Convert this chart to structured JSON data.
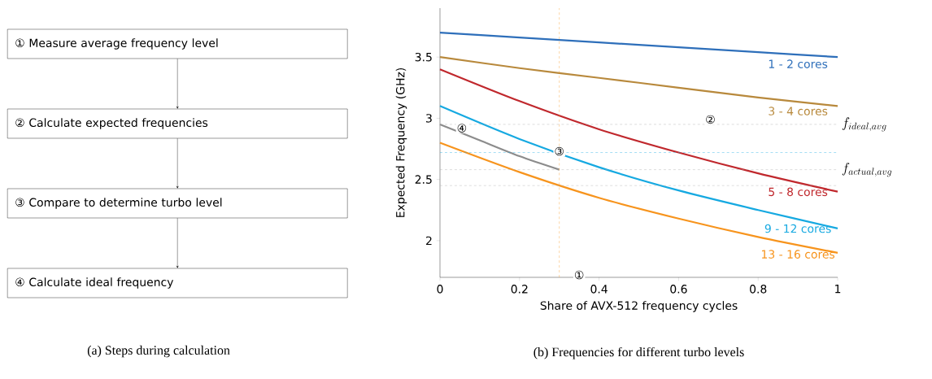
{
  "chart_data": [
    {
      "type": "other",
      "title": "(a) Steps during calculation",
      "annotations": [
        "① Measure average frequency level",
        "② Calculate expected frequencies",
        "③ Compare to determine turbo level",
        "④ Calculate ideal frequency"
      ]
    },
    {
      "type": "line",
      "title": "(b) Frequencies for different turbo levels",
      "xlabel": "Share of AVX-512 frequency cycles",
      "ylabel": "Expected Frequency (GHz)",
      "xlim": [
        0,
        1
      ],
      "ylim": [
        1.7,
        3.9
      ],
      "xticks": [
        0,
        0.2,
        0.4,
        0.6,
        0.8,
        1
      ],
      "yticks": [
        2,
        2.5,
        3,
        3.5
      ],
      "marker": "none",
      "x": [
        0,
        0.2,
        0.4,
        0.6,
        0.8,
        1
      ],
      "series": [
        {
          "name": "1 - 2 cores",
          "color": "#2e6fba",
          "values": [
            3.7,
            3.66,
            3.62,
            3.58,
            3.54,
            3.5
          ]
        },
        {
          "name": "3 - 4 cores",
          "color": "#b8893c",
          "values": [
            3.5,
            3.41,
            3.33,
            3.25,
            3.17,
            3.1
          ]
        },
        {
          "name": "5 - 8 cores",
          "color": "#c0282d",
          "values": [
            3.4,
            3.14,
            2.91,
            2.72,
            2.55,
            2.4
          ]
        },
        {
          "name": "9 - 12 cores",
          "color": "#16a9e1",
          "values": [
            3.1,
            2.83,
            2.6,
            2.41,
            2.25,
            2.1
          ]
        },
        {
          "name": "13 - 16 cores",
          "color": "#f7941d",
          "values": [
            2.8,
            2.56,
            2.35,
            2.18,
            2.03,
            1.9
          ]
        },
        {
          "color": "#8c8c8c",
          "x": [
            0,
            0.1,
            0.2,
            0.3
          ],
          "values": [
            2.95,
            2.82,
            2.69,
            2.58
          ]
        }
      ],
      "ref_lines": [
        {
          "axis": "y",
          "value": 2.95,
          "label": "f_{ideal,avg}",
          "color": "#aaaaaa",
          "line_style": "dashed"
        },
        {
          "axis": "y",
          "value": 2.58,
          "label": "f_{actual,avg}",
          "color": "#aaaaaa",
          "line_style": "dashed"
        },
        {
          "axis": "y",
          "value": 2.72,
          "color": "#16a9e1",
          "line_style": "dashed"
        },
        {
          "axis": "y",
          "value": 2.45,
          "color": "#aaaaaa",
          "line_style": "dashed"
        },
        {
          "axis": "x",
          "value": 0.3,
          "color": "#f7941d",
          "line_style": "dashed"
        }
      ],
      "annotations": [
        {
          "text": "①",
          "x": 0.35,
          "y": 1.72
        },
        {
          "text": "②",
          "x": 0.68,
          "y": 2.99
        },
        {
          "text": "③",
          "x": 0.3,
          "y": 2.73
        },
        {
          "text": "④",
          "x": 0.055,
          "y": 2.92
        }
      ]
    }
  ]
}
